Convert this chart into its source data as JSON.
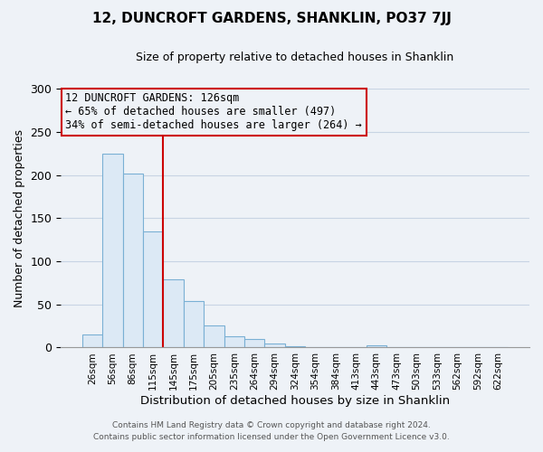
{
  "title": "12, DUNCROFT GARDENS, SHANKLIN, PO37 7JJ",
  "subtitle": "Size of property relative to detached houses in Shanklin",
  "xlabel": "Distribution of detached houses by size in Shanklin",
  "ylabel": "Number of detached properties",
  "bar_labels": [
    "26sqm",
    "56sqm",
    "86sqm",
    "115sqm",
    "145sqm",
    "175sqm",
    "205sqm",
    "235sqm",
    "264sqm",
    "294sqm",
    "324sqm",
    "354sqm",
    "384sqm",
    "413sqm",
    "443sqm",
    "473sqm",
    "503sqm",
    "533sqm",
    "562sqm",
    "592sqm",
    "622sqm"
  ],
  "bar_heights": [
    15,
    225,
    202,
    135,
    79,
    54,
    26,
    13,
    10,
    5,
    2,
    1,
    0,
    0,
    3,
    1,
    0,
    0,
    0,
    0,
    1
  ],
  "bar_color": "#dce9f5",
  "bar_edgecolor": "#7ab0d4",
  "marker_line_color": "#cc0000",
  "marker_bin_index": 3,
  "annotation_title": "12 DUNCROFT GARDENS: 126sqm",
  "annotation_line1": "← 65% of detached houses are smaller (497)",
  "annotation_line2": "34% of semi-detached houses are larger (264) →",
  "annotation_box_edgecolor": "#cc0000",
  "ylim": [
    0,
    300
  ],
  "yticks": [
    0,
    50,
    100,
    150,
    200,
    250,
    300
  ],
  "footer1": "Contains HM Land Registry data © Crown copyright and database right 2024.",
  "footer2": "Contains public sector information licensed under the Open Government Licence v3.0.",
  "bg_color": "#eef2f7",
  "grid_color": "#c8d4e4",
  "spine_color": "#999999"
}
